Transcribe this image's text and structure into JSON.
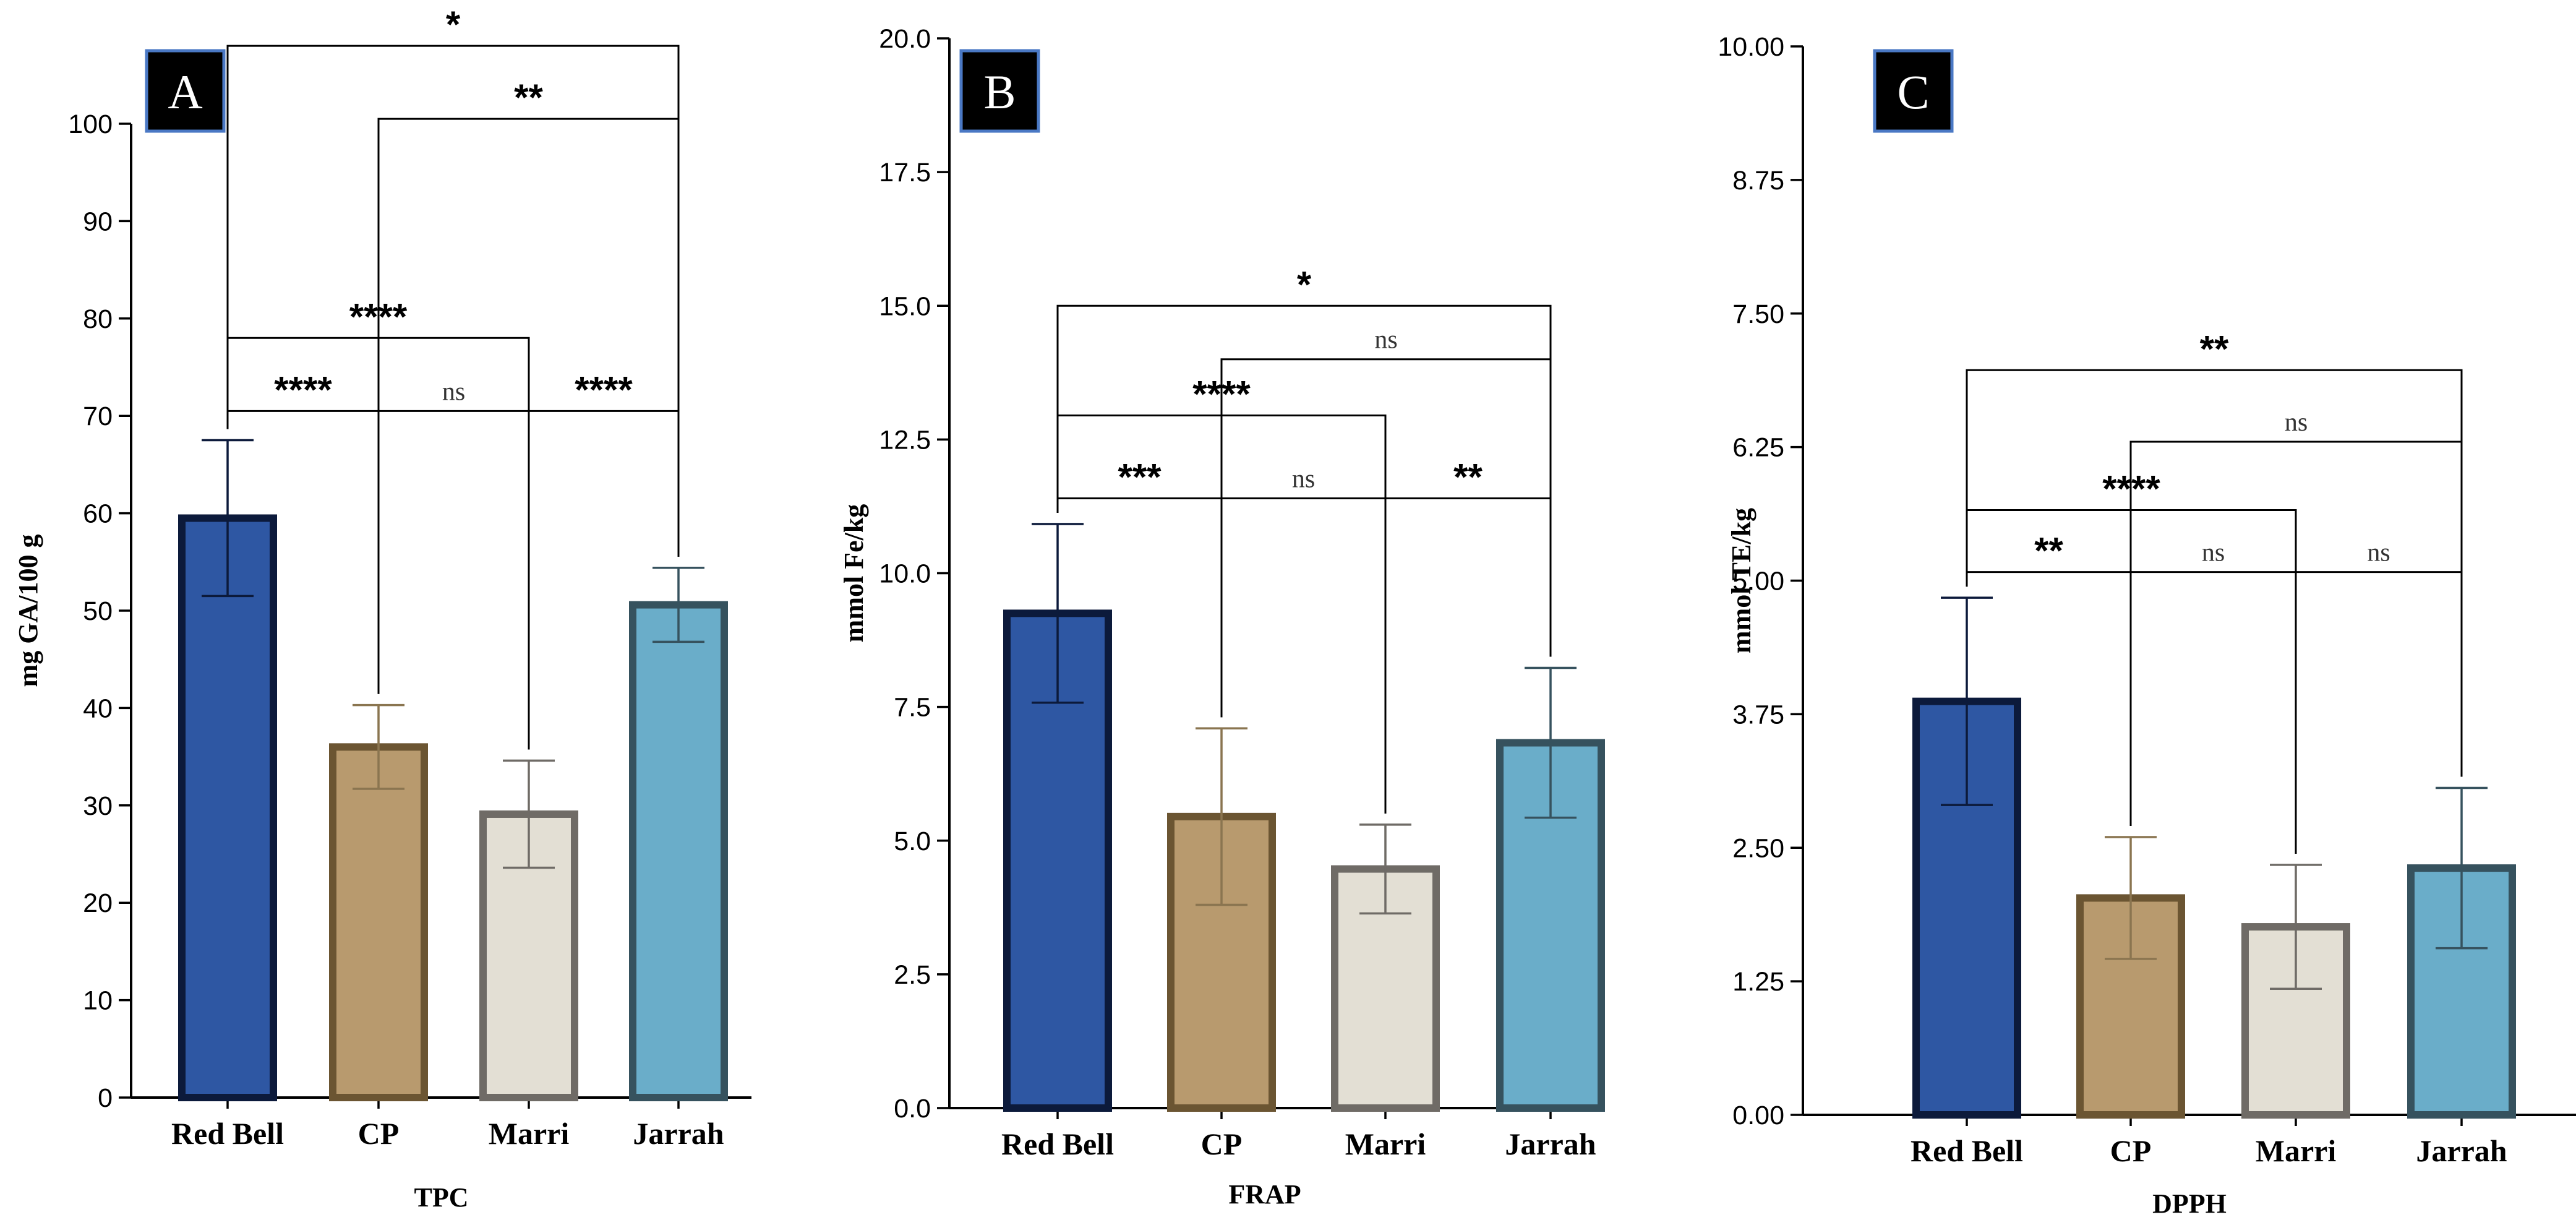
{
  "colors": {
    "Red Bell": {
      "fill": "#2e57a3",
      "stroke": "#0c1a3b",
      "err": "#0c1a3b"
    },
    "CP": {
      "fill": "#b89a6e",
      "stroke": "#6b5532",
      "err": "#8a7550"
    },
    "Marri": {
      "fill": "#e3dfd4",
      "stroke": "#6f6b66",
      "err": "#6f6b66"
    },
    "Jarrah": {
      "fill": "#6aadc9",
      "stroke": "#36525e",
      "err": "#36525e"
    }
  },
  "chart_data": [
    {
      "type": "bar",
      "panel": "A",
      "xlabel": "TPC",
      "ylabel": "mg GA/100 g",
      "categories": [
        "Red Bell",
        "CP",
        "Marri",
        "Jarrah"
      ],
      "values": [
        59.5,
        36.0,
        29.1,
        50.6
      ],
      "errors": [
        8.0,
        4.3,
        5.5,
        3.8
      ],
      "ylim": [
        0,
        100
      ],
      "ticks": [
        0,
        10,
        20,
        30,
        40,
        50,
        60,
        70,
        80,
        90,
        100
      ],
      "tick_labels": [
        "0",
        "10",
        "20",
        "30",
        "40",
        "50",
        "60",
        "70",
        "80",
        "90",
        "100"
      ],
      "comparisons": [
        {
          "from": 0,
          "to": 1,
          "y": 70.5,
          "label": "****"
        },
        {
          "from": 1,
          "to": 2,
          "y": 70.5,
          "label": "ns"
        },
        {
          "from": 2,
          "to": 3,
          "y": 70.5,
          "label": "****"
        },
        {
          "from": 0,
          "to": 2,
          "y": 78.0,
          "label": "****"
        },
        {
          "from": 1,
          "to": 3,
          "y": 100.5,
          "label": "**"
        },
        {
          "from": 0,
          "to": 3,
          "y": 108.0,
          "label": "*"
        }
      ]
    },
    {
      "type": "bar",
      "panel": "B",
      "xlabel": "FRAP",
      "ylabel": "mmol Fe/kg",
      "categories": [
        "Red Bell",
        "CP",
        "Marri",
        "Jarrah"
      ],
      "values": [
        9.25,
        5.45,
        4.47,
        6.83
      ],
      "errors": [
        1.67,
        1.65,
        0.83,
        1.4
      ],
      "ylim": [
        0,
        20
      ],
      "ticks": [
        0,
        2.5,
        5,
        7.5,
        10,
        12.5,
        15,
        17.5,
        20
      ],
      "tick_labels": [
        "0.0",
        "2.5",
        "5.0",
        "7.5",
        "10.0",
        "12.5",
        "15.0",
        "17.5",
        "20.0"
      ],
      "comparisons": [
        {
          "from": 0,
          "to": 1,
          "y": 11.4,
          "label": "***"
        },
        {
          "from": 1,
          "to": 2,
          "y": 11.4,
          "label": "ns"
        },
        {
          "from": 2,
          "to": 3,
          "y": 11.4,
          "label": "**"
        },
        {
          "from": 0,
          "to": 2,
          "y": 12.95,
          "label": "****"
        },
        {
          "from": 1,
          "to": 3,
          "y": 14.0,
          "label": "ns"
        },
        {
          "from": 0,
          "to": 3,
          "y": 15.0,
          "label": "*"
        }
      ]
    },
    {
      "type": "bar",
      "panel": "C",
      "xlabel": "DPPH",
      "ylabel": "mmol TE/kg",
      "categories": [
        "Red Bell",
        "CP",
        "Marri",
        "Jarrah"
      ],
      "values": [
        3.87,
        2.03,
        1.76,
        2.31
      ],
      "errors": [
        0.97,
        0.57,
        0.58,
        0.75
      ],
      "ylim": [
        0,
        10
      ],
      "ticks": [
        0,
        1.25,
        2.5,
        3.75,
        5,
        6.25,
        7.5,
        8.75,
        10
      ],
      "tick_labels": [
        "0.00",
        "1.25",
        "2.50",
        "3.75",
        "5.00",
        "6.25",
        "7.50",
        "8.75",
        "10.00"
      ],
      "comparisons": [
        {
          "from": 0,
          "to": 1,
          "y": 5.08,
          "label": "**"
        },
        {
          "from": 1,
          "to": 2,
          "y": 5.08,
          "label": "ns"
        },
        {
          "from": 2,
          "to": 3,
          "y": 5.08,
          "label": "ns"
        },
        {
          "from": 0,
          "to": 2,
          "y": 5.66,
          "label": "****"
        },
        {
          "from": 1,
          "to": 3,
          "y": 6.3,
          "label": "ns"
        },
        {
          "from": 0,
          "to": 3,
          "y": 6.97,
          "label": "**"
        }
      ]
    }
  ]
}
